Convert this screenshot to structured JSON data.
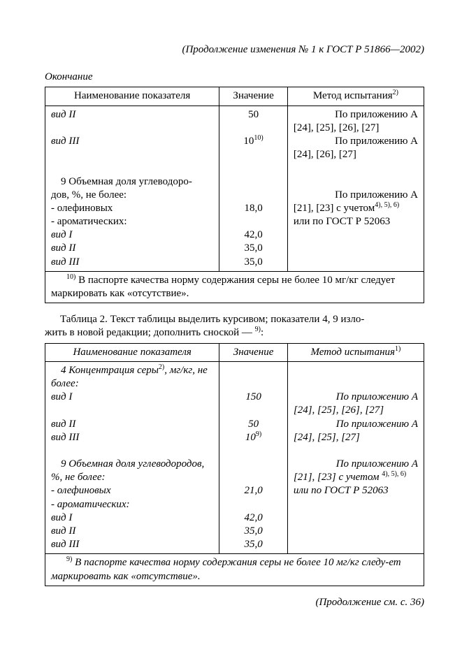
{
  "header": "(Продолжение изменения № 1 к ГОСТ  Р 51866—2002)",
  "okonchanie": "Окончание",
  "table1": {
    "headers": {
      "name": "Наименование показателя",
      "value": "Значение",
      "method": "Метод испытания",
      "method_sup": "2)"
    },
    "rows": {
      "vid2_label": "вид II",
      "vid2_value": "50",
      "method_block1_line1": "По  приложению  А",
      "method_block1_line2": "[24],  [25],  [26],  [27]",
      "vid3_label": "вид III",
      "vid3_value": "10",
      "vid3_sup": "10)",
      "method_block2_line1": "По  приложению  А",
      "method_block2_line2": "[24],  [26],  [27]",
      "sec9_line1": "9 Объемная доля углеводоро-",
      "sec9_line2": "дов,  %,  не более:",
      "olef": "- олефиновых",
      "olef_value": "18,0",
      "method_block3_line1": "По  приложению  А",
      "method_block3_line2": "[21],  [23] с учетом",
      "method_block3_sup": "4), 5), 6)",
      "method_block3_line3": "или по ГОСТ Р 52063",
      "arom": "- ароматических:",
      "vidI_label": "вид I",
      "vidI_value": "42,0",
      "vidII_label": "вид II",
      "vidII_value": "35,0",
      "vidIII_label": "вид III",
      "vidIII_value": "35,0"
    },
    "footnote_sup": "10)",
    "footnote": " В паспорте качества норму содержания серы не более 10 мг/кг следует маркировать как «отсутствие»."
  },
  "between": {
    "text_a": "Таблица 2. Текст таблицы выделить курсивом; показатели 4, 9 изло-",
    "text_b": "жить в новой редакции; дополнить сноской — ",
    "sup": "9)",
    "tail": ":"
  },
  "table2": {
    "headers": {
      "name": "Наименование показателя",
      "value": "Значение",
      "method": "Метод испытания",
      "method_sup": "1)"
    },
    "rows": {
      "sec4_line1a": "4 Концентрация серы",
      "sec4_sup": "2)",
      "sec4_line1b": ", мг/кг, не",
      "sec4_line2": "более:",
      "vidI_label": "вид I",
      "vidI_value": "150",
      "method_block1_line1": "По  приложению  А",
      "method_block1_line2": "[24], [25], [26], [27]",
      "vidII_label": "вид II",
      "vidII_value": "50",
      "method_block2_line1": "По  приложению  А",
      "method_block2_line2": "[24], [25], [27]",
      "vidIII_label": "вид III",
      "vidIII_value": "10",
      "vidIII_sup": "9)",
      "sec9_line1": "9 Объемная доля углеводородов,",
      "sec9_line2": "%, не более:",
      "method_block3_line1": "По  приложению  А",
      "method_block3_line2": "[21], [23] с учетом ",
      "method_block3_sup": "4), 5), 6)",
      "method_block3_line3": "или по ГОСТ Р 52063",
      "olef": "- олефиновых",
      "olef_value": "21,0",
      "arom": "- ароматических:",
      "aromI_label": "вид I",
      "aromI_value": "42,0",
      "aromII_label": "вид II",
      "aromII_value": "35,0",
      "aromIII_label": "вид III",
      "aromIII_value": "35,0"
    },
    "footnote_sup": "9)",
    "footnote": "  В паспорте качества норму содержания серы не более 10 мг/кг следу-ет маркировать как «отсутствие»."
  },
  "footer": "(Продолжение см. с. 36)"
}
